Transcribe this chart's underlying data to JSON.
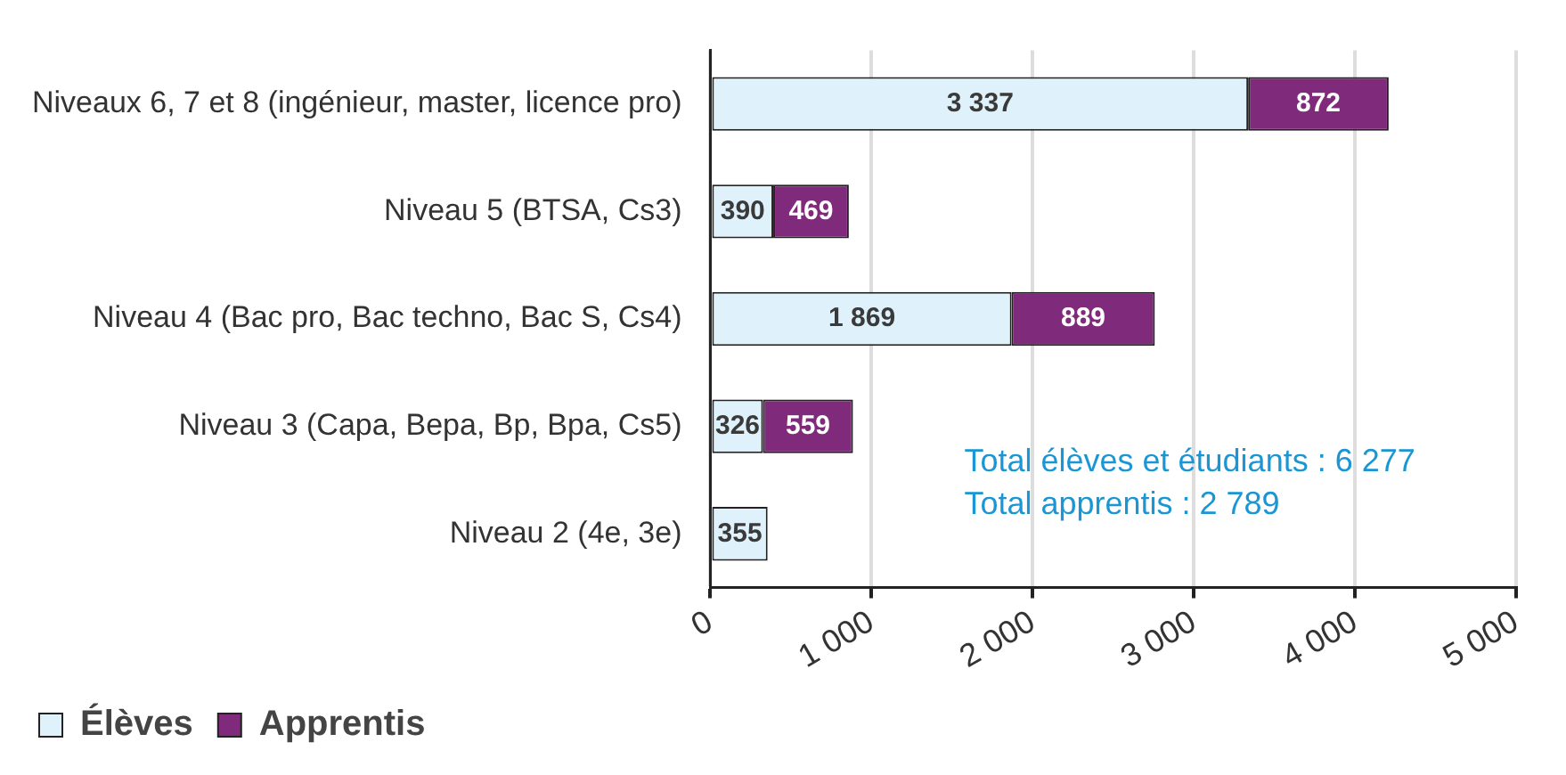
{
  "chart_data": {
    "type": "bar",
    "orientation": "horizontal",
    "stacked": true,
    "categories": [
      "Niveaux 6, 7 et 8 (ingénieur, master, licence pro)",
      "Niveau 5 (BTSA, Cs3)",
      "Niveau 4 (Bac pro, Bac techno, Bac S, Cs4)",
      "Niveau 3 (Capa, Bepa, Bp, Bpa, Cs5)",
      "Niveau 2 (4e, 3e)"
    ],
    "series": [
      {
        "name": "Élèves",
        "color": "#dff2fb",
        "values": [
          3337,
          390,
          1869,
          326,
          355
        ],
        "value_labels": [
          "3 337",
          "390",
          "1 869",
          "326",
          "355"
        ]
      },
      {
        "name": "Apprentis",
        "color": "#7f2a7b",
        "values": [
          872,
          469,
          889,
          559,
          null
        ],
        "value_labels": [
          "872",
          "469",
          "889",
          "559",
          null
        ]
      }
    ],
    "xlim": [
      0,
      5000
    ],
    "xticks": [
      0,
      {
        "value": 1000,
        "label": "1 000"
      },
      {
        "value": 2000,
        "label": "2 000"
      },
      {
        "value": 3000,
        "label": "3 000"
      },
      {
        "value": 4000,
        "label": "4 000"
      },
      {
        "value": 5000,
        "label": "5 000"
      }
    ],
    "grid": "x",
    "legend": "bottom left",
    "annotations": [
      "Total élèves et étudiants : 6 277",
      "Total apprentis : 2 789"
    ]
  }
}
